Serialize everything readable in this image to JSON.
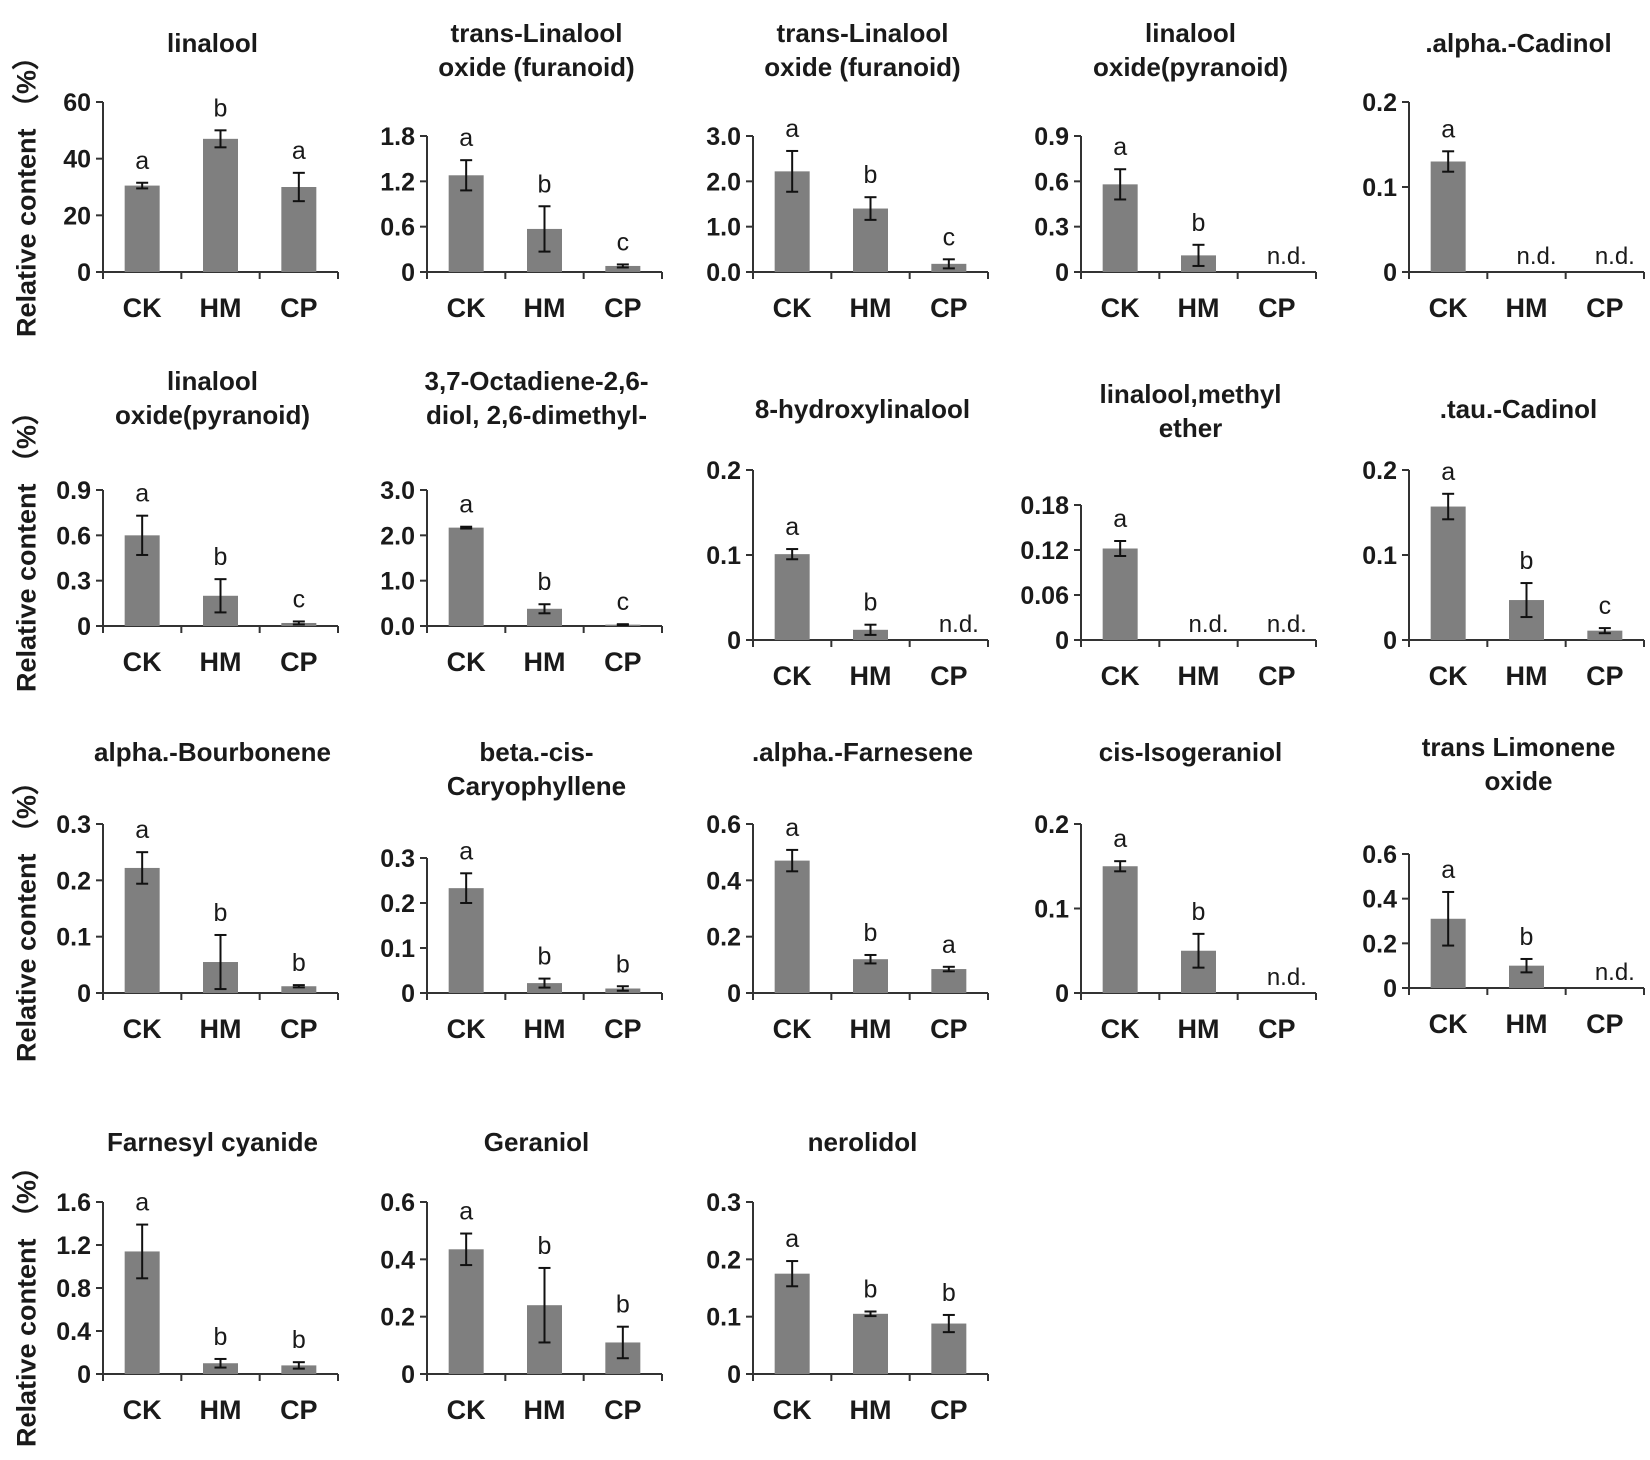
{
  "y_axis_label": "Relative content （%）",
  "categories": [
    "CK",
    "HM",
    "CP"
  ],
  "bar_color": "#7f7f7f",
  "chart_data": [
    {
      "type": "bar",
      "title": "linalool",
      "categories": [
        "CK",
        "HM",
        "CP"
      ],
      "values": [
        30.5,
        47,
        30
      ],
      "errors": [
        1,
        3,
        5
      ],
      "significance": [
        "a",
        "b",
        "a"
      ],
      "ylim": [
        0,
        60
      ],
      "yticks": [
        "0",
        "20",
        "40",
        "60"
      ]
    },
    {
      "type": "bar",
      "title": "trans-Linalool oxide (furanoid)",
      "categories": [
        "CK",
        "HM",
        "CP"
      ],
      "values": [
        1.28,
        0.57,
        0.08
      ],
      "errors": [
        0.2,
        0.3,
        0.02
      ],
      "significance": [
        "a",
        "b",
        "c"
      ],
      "ylim": [
        0,
        1.8
      ],
      "yticks": [
        "0",
        "0.6",
        "1.2",
        "1.8"
      ]
    },
    {
      "type": "bar",
      "title": "trans-Linalool oxide (furanoid)",
      "categories": [
        "CK",
        "HM",
        "CP"
      ],
      "values": [
        2.22,
        1.4,
        0.18
      ],
      "errors": [
        0.45,
        0.25,
        0.1
      ],
      "significance": [
        "a",
        "b",
        "c"
      ],
      "ylim": [
        0,
        3.0
      ],
      "yticks": [
        "0.0",
        "1.0",
        "2.0",
        "3.0"
      ]
    },
    {
      "type": "bar",
      "title": "linalool oxide(pyranoid)",
      "categories": [
        "CK",
        "HM",
        "CP"
      ],
      "values": [
        0.58,
        0.11,
        null
      ],
      "errors": [
        0.1,
        0.07,
        null
      ],
      "significance": [
        "a",
        "b",
        "n.d."
      ],
      "ylim": [
        0,
        0.9
      ],
      "yticks": [
        "0",
        "0.3",
        "0.6",
        "0.9"
      ]
    },
    {
      "type": "bar",
      "title": ".alpha.-Cadinol",
      "categories": [
        "CK",
        "HM",
        "CP"
      ],
      "values": [
        0.13,
        null,
        null
      ],
      "errors": [
        0.012,
        null,
        null
      ],
      "significance": [
        "a",
        "n.d.",
        "n.d."
      ],
      "ylim": [
        0,
        0.2
      ],
      "yticks": [
        "0",
        "0.1",
        "0.2"
      ]
    },
    {
      "type": "bar",
      "title": "linalool oxide(pyranoid)",
      "categories": [
        "CK",
        "HM",
        "CP"
      ],
      "values": [
        0.6,
        0.2,
        0.02
      ],
      "errors": [
        0.13,
        0.11,
        0.01
      ],
      "significance": [
        "a",
        "b",
        "c"
      ],
      "ylim": [
        0,
        0.9
      ],
      "yticks": [
        "0",
        "0.3",
        "0.6",
        "0.9"
      ]
    },
    {
      "type": "bar",
      "title": "3,7-Octadiene-2,6-diol, 2,6-dimethyl-",
      "categories": [
        "CK",
        "HM",
        "CP"
      ],
      "values": [
        2.17,
        0.38,
        0.03
      ],
      "errors": [
        0.02,
        0.1,
        0.01
      ],
      "significance": [
        "a",
        "b",
        "c"
      ],
      "ylim": [
        0,
        3.0
      ],
      "yticks": [
        "0.0",
        "1.0",
        "2.0",
        "3.0"
      ]
    },
    {
      "type": "bar",
      "title": "8-hydroxylinalool",
      "categories": [
        "CK",
        "HM",
        "CP"
      ],
      "values": [
        0.101,
        0.012,
        null
      ],
      "errors": [
        0.006,
        0.006,
        null
      ],
      "significance": [
        "a",
        "b",
        "n.d."
      ],
      "ylim": [
        0,
        0.2
      ],
      "yticks": [
        "0",
        "0.1",
        "0.2"
      ]
    },
    {
      "type": "bar",
      "title": "linalool,methyl ether",
      "categories": [
        "CK",
        "HM",
        "CP"
      ],
      "values": [
        0.122,
        null,
        null
      ],
      "errors": [
        0.01,
        null,
        null
      ],
      "significance": [
        "a",
        "n.d.",
        "n.d."
      ],
      "ylim": [
        0,
        0.18
      ],
      "yticks": [
        "0",
        "0.06",
        "0.12",
        "0.18"
      ]
    },
    {
      "type": "bar",
      "title": ".tau.-Cadinol",
      "categories": [
        "CK",
        "HM",
        "CP"
      ],
      "values": [
        0.157,
        0.047,
        0.011
      ],
      "errors": [
        0.015,
        0.02,
        0.003
      ],
      "significance": [
        "a",
        "b",
        "c"
      ],
      "ylim": [
        0,
        0.2
      ],
      "yticks": [
        "0",
        "0.1",
        "0.2"
      ]
    },
    {
      "type": "bar",
      "title": "alpha.-Bourbonene",
      "categories": [
        "CK",
        "HM",
        "CP"
      ],
      "values": [
        0.222,
        0.055,
        0.012
      ],
      "errors": [
        0.028,
        0.048,
        0.002
      ],
      "significance": [
        "a",
        "b",
        "b"
      ],
      "ylim": [
        0,
        0.3
      ],
      "yticks": [
        "0",
        "0.1",
        "0.2",
        "0.3"
      ]
    },
    {
      "type": "bar",
      "title": "beta.-cis-Caryophyllene",
      "categories": [
        "CK",
        "HM",
        "CP"
      ],
      "values": [
        0.233,
        0.022,
        0.01
      ],
      "errors": [
        0.033,
        0.01,
        0.005
      ],
      "significance": [
        "a",
        "b",
        "b"
      ],
      "ylim": [
        0,
        0.3
      ],
      "yticks": [
        "0",
        "0.1",
        "0.2",
        "0.3"
      ]
    },
    {
      "type": "bar",
      "title": ".alpha.-Farnesene",
      "categories": [
        "CK",
        "HM",
        "CP"
      ],
      "values": [
        0.47,
        0.12,
        0.085
      ],
      "errors": [
        0.038,
        0.015,
        0.008
      ],
      "significance": [
        "a",
        "b",
        "a"
      ],
      "ylim": [
        0,
        0.6
      ],
      "yticks": [
        "0",
        "0.2",
        "0.4",
        "0.6"
      ]
    },
    {
      "type": "bar",
      "title": "cis-Isogeraniol",
      "categories": [
        "CK",
        "HM",
        "CP"
      ],
      "values": [
        0.15,
        0.05,
        null
      ],
      "errors": [
        0.006,
        0.02,
        null
      ],
      "significance": [
        "a",
        "b",
        "n.d."
      ],
      "ylim": [
        0,
        0.2
      ],
      "yticks": [
        "0",
        "0.1",
        "0.2"
      ]
    },
    {
      "type": "bar",
      "title": "trans Limonene oxide",
      "categories": [
        "CK",
        "HM",
        "CP"
      ],
      "values": [
        0.31,
        0.1,
        null
      ],
      "errors": [
        0.12,
        0.03,
        null
      ],
      "significance": [
        "a",
        "b",
        "n.d."
      ],
      "ylim": [
        0,
        0.6
      ],
      "yticks": [
        "0",
        "0.2",
        "0.4",
        "0.6"
      ]
    },
    {
      "type": "bar",
      "title": "Farnesyl  cyanide",
      "categories": [
        "CK",
        "HM",
        "CP"
      ],
      "values": [
        1.14,
        0.1,
        0.08
      ],
      "errors": [
        0.25,
        0.04,
        0.03
      ],
      "significance": [
        "a",
        "b",
        "b"
      ],
      "ylim": [
        0,
        1.6
      ],
      "yticks": [
        "0",
        "0.4",
        "0.8",
        "1.2",
        "1.6"
      ]
    },
    {
      "type": "bar",
      "title": "Geraniol",
      "categories": [
        "CK",
        "HM",
        "CP"
      ],
      "values": [
        0.435,
        0.24,
        0.11
      ],
      "errors": [
        0.055,
        0.13,
        0.055
      ],
      "significance": [
        "a",
        "b",
        "b"
      ],
      "ylim": [
        0,
        0.6
      ],
      "yticks": [
        "0",
        "0.2",
        "0.4",
        "0.6"
      ]
    },
    {
      "type": "bar",
      "title": "nerolidol",
      "categories": [
        "CK",
        "HM",
        "CP"
      ],
      "values": [
        0.175,
        0.105,
        0.088
      ],
      "errors": [
        0.022,
        0.004,
        0.015
      ],
      "significance": [
        "a",
        "b",
        "b"
      ],
      "ylim": [
        0,
        0.3
      ],
      "yticks": [
        "0",
        "0.1",
        "0.2",
        "0.3"
      ]
    }
  ]
}
